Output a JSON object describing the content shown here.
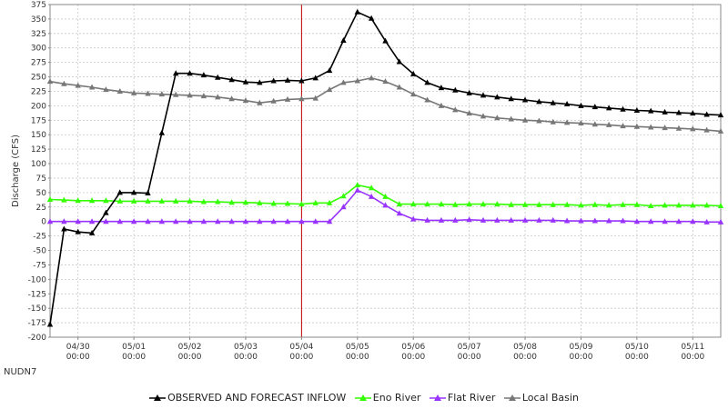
{
  "station_label": "NUDN7",
  "colors": {
    "background": "#ffffff",
    "grid": "#c8c8c8",
    "marker_line": "#c00000",
    "axis": "#888888"
  },
  "chart_data": {
    "type": "line",
    "ylabel": "Discharge (CFS)",
    "ylim": [
      -200,
      375
    ],
    "y_step": 25,
    "y_ticks": [
      375,
      350,
      325,
      300,
      275,
      250,
      225,
      200,
      175,
      150,
      125,
      100,
      75,
      50,
      25,
      0,
      -25,
      -50,
      -75,
      -100,
      -125,
      -150,
      -175,
      -200
    ],
    "grid": true,
    "legend_position": "bottom",
    "x_start": "2025-04-29T12:00",
    "x_end": "2025-05-11T12:00",
    "x_ticks": [
      {
        "x": "2025-04-30T00:00",
        "date": "04/30",
        "time": "00:00"
      },
      {
        "x": "2025-05-01T00:00",
        "date": "05/01",
        "time": "00:00"
      },
      {
        "x": "2025-05-02T00:00",
        "date": "05/02",
        "time": "00:00"
      },
      {
        "x": "2025-05-03T00:00",
        "date": "05/03",
        "time": "00:00"
      },
      {
        "x": "2025-05-04T00:00",
        "date": "05/04",
        "time": "00:00"
      },
      {
        "x": "2025-05-05T00:00",
        "date": "05/05",
        "time": "00:00"
      },
      {
        "x": "2025-05-06T00:00",
        "date": "05/06",
        "time": "00:00"
      },
      {
        "x": "2025-05-07T00:00",
        "date": "05/07",
        "time": "00:00"
      },
      {
        "x": "2025-05-08T00:00",
        "date": "05/08",
        "time": "00:00"
      },
      {
        "x": "2025-05-09T00:00",
        "date": "05/09",
        "time": "00:00"
      },
      {
        "x": "2025-05-10T00:00",
        "date": "05/10",
        "time": "00:00"
      },
      {
        "x": "2025-05-11T00:00",
        "date": "05/11",
        "time": "00:00"
      }
    ],
    "current_time": "2025-05-04T00:00",
    "x": [
      "2025-04-29T12:00",
      "2025-04-29T18:00",
      "2025-04-30T00:00",
      "2025-04-30T06:00",
      "2025-04-30T12:00",
      "2025-04-30T18:00",
      "2025-05-01T00:00",
      "2025-05-01T06:00",
      "2025-05-01T12:00",
      "2025-05-01T18:00",
      "2025-05-02T00:00",
      "2025-05-02T06:00",
      "2025-05-02T12:00",
      "2025-05-02T18:00",
      "2025-05-03T00:00",
      "2025-05-03T06:00",
      "2025-05-03T12:00",
      "2025-05-03T18:00",
      "2025-05-04T00:00",
      "2025-05-04T06:00",
      "2025-05-04T12:00",
      "2025-05-04T18:00",
      "2025-05-05T00:00",
      "2025-05-05T06:00",
      "2025-05-05T12:00",
      "2025-05-05T18:00",
      "2025-05-06T00:00",
      "2025-05-06T06:00",
      "2025-05-06T12:00",
      "2025-05-06T18:00",
      "2025-05-07T00:00",
      "2025-05-07T06:00",
      "2025-05-07T12:00",
      "2025-05-07T18:00",
      "2025-05-08T00:00",
      "2025-05-08T06:00",
      "2025-05-08T12:00",
      "2025-05-08T18:00",
      "2025-05-09T00:00",
      "2025-05-09T06:00",
      "2025-05-09T12:00",
      "2025-05-09T18:00",
      "2025-05-10T00:00",
      "2025-05-10T06:00",
      "2025-05-10T12:00",
      "2025-05-10T18:00",
      "2025-05-11T00:00",
      "2025-05-11T06:00",
      "2025-05-11T12:00"
    ],
    "series": [
      {
        "name": "OBSERVED AND FORECAST INFLOW",
        "color": "#000000",
        "values": [
          -178,
          -13,
          -18,
          -20,
          15,
          50,
          50,
          49,
          153,
          256,
          256,
          253,
          249,
          245,
          241,
          240,
          243,
          244,
          243,
          248,
          261,
          313,
          362,
          351,
          312,
          276,
          255,
          240,
          231,
          227,
          222,
          218,
          215,
          212,
          210,
          207,
          205,
          203,
          200,
          198,
          196,
          194,
          192,
          191,
          189,
          188,
          187,
          185,
          184
        ]
      },
      {
        "name": "Eno River",
        "color": "#33ff00",
        "values": [
          38,
          37,
          36,
          36,
          36,
          35,
          35,
          35,
          35,
          35,
          35,
          34,
          34,
          33,
          33,
          32,
          31,
          31,
          30,
          32,
          32,
          44,
          63,
          58,
          43,
          30,
          30,
          30,
          30,
          29,
          30,
          30,
          30,
          29,
          29,
          29,
          29,
          29,
          28,
          29,
          28,
          29,
          29,
          27,
          28,
          28,
          28,
          28,
          27
        ]
      },
      {
        "name": "Flat River",
        "color": "#9933ff",
        "values": [
          0,
          0,
          0,
          0,
          0,
          0,
          0,
          0,
          0,
          0,
          0,
          0,
          0,
          0,
          0,
          0,
          0,
          0,
          0,
          0,
          0,
          25,
          54,
          43,
          28,
          14,
          4,
          2,
          2,
          2,
          3,
          2,
          2,
          2,
          2,
          2,
          2,
          1,
          1,
          1,
          1,
          1,
          0,
          0,
          0,
          0,
          0,
          -1,
          -1
        ]
      },
      {
        "name": "Local Basin",
        "color": "#777777",
        "values": [
          242,
          238,
          235,
          232,
          228,
          225,
          222,
          221,
          220,
          219,
          218,
          217,
          215,
          212,
          209,
          205,
          208,
          211,
          212,
          213,
          228,
          240,
          243,
          248,
          242,
          232,
          220,
          210,
          200,
          193,
          187,
          182,
          179,
          177,
          175,
          174,
          172,
          171,
          170,
          168,
          167,
          165,
          164,
          163,
          162,
          161,
          160,
          158,
          156
        ]
      }
    ]
  }
}
